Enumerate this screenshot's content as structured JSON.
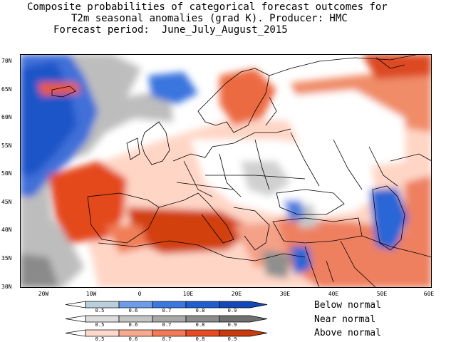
{
  "title": {
    "line1": "Composite probabilities of categorical forecast outcomes for",
    "line2": "T2m seasonal anomalies (grad K). Producer: HMC",
    "line3": "Forecast period:  June_July_August_2015"
  },
  "map": {
    "latitude_labels": [
      "70N",
      "65N",
      "60N",
      "55N",
      "50N",
      "45N",
      "40N",
      "35N",
      "30N"
    ],
    "longitude_labels": [
      "20W",
      "10W",
      "0",
      "10E",
      "20E",
      "30E",
      "40E",
      "50E",
      "60E"
    ]
  },
  "legend": {
    "below_normal": {
      "label": "Below normal",
      "ticks": [
        "0.5",
        "0.6",
        "0.7",
        "0.8",
        "0.9"
      ],
      "colors": [
        "#b9cfdb",
        "#6d9de8",
        "#3a78e0",
        "#1f5fd0",
        "#1248b8"
      ]
    },
    "near_normal": {
      "label": "Near normal",
      "ticks": [
        "0.5",
        "0.6",
        "0.7",
        "0.8",
        "0.9"
      ],
      "colors": [
        "#dcdcdc",
        "#c4c4c4",
        "#a8a8a8",
        "#8c8c8c",
        "#707070"
      ]
    },
    "above_normal": {
      "label": "Above normal",
      "ticks": [
        "0.5",
        "0.6",
        "0.7",
        "0.8",
        "0.9"
      ],
      "colors": [
        "#ffd8cc",
        "#f9aa8e",
        "#f47a56",
        "#e84a22",
        "#c93a0c"
      ]
    }
  }
}
